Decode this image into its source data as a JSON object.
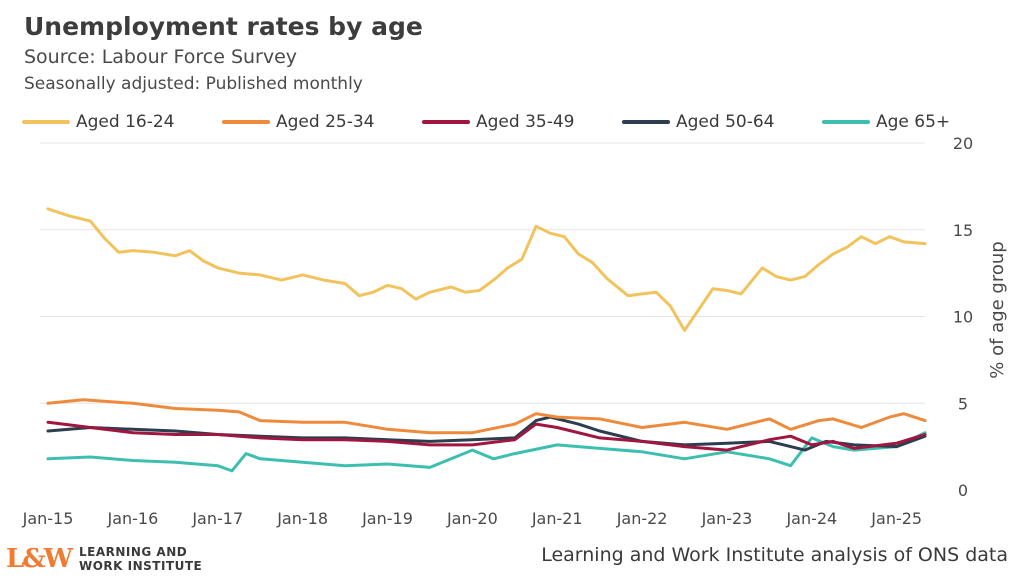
{
  "header": {
    "title": "Unemployment rates by age",
    "subtitle": "Source: Labour Force Survey",
    "subtitle2": "Seasonally adjusted: Published monthly"
  },
  "footer": {
    "brand_mark": "L&W",
    "brand_line1": "LEARNING AND",
    "brand_line2": "WORK INSTITUTE",
    "source": "Learning and Work Institute analysis of ONS data"
  },
  "colors": {
    "aged_16_24": "#f2c35d",
    "aged_25_34": "#ee8a3c",
    "aged_35_49": "#a0163f",
    "aged_50_64": "#2b3d4f",
    "age_65plus": "#3dbfb0",
    "brand": "#f07c34"
  },
  "chart_data": {
    "type": "line",
    "title": "Unemployment rates by age",
    "ylabel": "% of age group",
    "ylim": [
      0,
      20
    ],
    "yticks": [
      0,
      5,
      10,
      15,
      20
    ],
    "grid": true,
    "legend_position": "top",
    "x_tick_labels": [
      "Jan-15",
      "Jan-16",
      "Jan-17",
      "Jan-18",
      "Jan-19",
      "Jan-20",
      "Jan-21",
      "Jan-22",
      "Jan-23",
      "Jan-24",
      "Jan-25"
    ],
    "x_start": "Jan-15",
    "x_end": "May-25",
    "x_frequency": "monthly",
    "series_keyframes_note": "values at listed months; monthly values between",
    "series": [
      {
        "name": "Aged 16-24",
        "color": "#f2c35d",
        "points": [
          [
            "Jan-15",
            16.2
          ],
          [
            "Apr-15",
            15.8
          ],
          [
            "Jul-15",
            15.5
          ],
          [
            "Sep-15",
            14.5
          ],
          [
            "Nov-15",
            13.7
          ],
          [
            "Jan-16",
            13.8
          ],
          [
            "Apr-16",
            13.7
          ],
          [
            "Jul-16",
            13.5
          ],
          [
            "Sep-16",
            13.8
          ],
          [
            "Nov-16",
            13.2
          ],
          [
            "Jan-17",
            12.8
          ],
          [
            "Apr-17",
            12.5
          ],
          [
            "Jul-17",
            12.4
          ],
          [
            "Oct-17",
            12.1
          ],
          [
            "Jan-18",
            12.4
          ],
          [
            "Apr-18",
            12.1
          ],
          [
            "Jul-18",
            11.9
          ],
          [
            "Sep-18",
            11.2
          ],
          [
            "Nov-18",
            11.4
          ],
          [
            "Jan-19",
            11.8
          ],
          [
            "Mar-19",
            11.6
          ],
          [
            "May-19",
            11.0
          ],
          [
            "Jul-19",
            11.4
          ],
          [
            "Oct-19",
            11.7
          ],
          [
            "Dec-19",
            11.4
          ],
          [
            "Feb-20",
            11.5
          ],
          [
            "Apr-20",
            12.1
          ],
          [
            "Jun-20",
            12.8
          ],
          [
            "Aug-20",
            13.3
          ],
          [
            "Oct-20",
            15.2
          ],
          [
            "Dec-20",
            14.8
          ],
          [
            "Feb-21",
            14.6
          ],
          [
            "Apr-21",
            13.6
          ],
          [
            "Jun-21",
            13.1
          ],
          [
            "Aug-21",
            12.2
          ],
          [
            "Nov-21",
            11.2
          ],
          [
            "Jan-22",
            11.3
          ],
          [
            "Mar-22",
            11.4
          ],
          [
            "May-22",
            10.6
          ],
          [
            "Jul-22",
            9.2
          ],
          [
            "Sep-22",
            10.4
          ],
          [
            "Nov-22",
            11.6
          ],
          [
            "Jan-23",
            11.5
          ],
          [
            "Mar-23",
            11.3
          ],
          [
            "Jun-23",
            12.8
          ],
          [
            "Aug-23",
            12.3
          ],
          [
            "Oct-23",
            12.1
          ],
          [
            "Dec-23",
            12.3
          ],
          [
            "Feb-24",
            13.0
          ],
          [
            "Apr-24",
            13.6
          ],
          [
            "Jun-24",
            14.0
          ],
          [
            "Aug-24",
            14.6
          ],
          [
            "Oct-24",
            14.2
          ],
          [
            "Dec-24",
            14.6
          ],
          [
            "Feb-25",
            14.3
          ],
          [
            "May-25",
            14.2
          ]
        ]
      },
      {
        "name": "Aged 25-34",
        "color": "#ee8a3c",
        "points": [
          [
            "Jan-15",
            5.0
          ],
          [
            "Jun-15",
            5.2
          ],
          [
            "Jan-16",
            5.0
          ],
          [
            "Jul-16",
            4.7
          ],
          [
            "Jan-17",
            4.6
          ],
          [
            "Apr-17",
            4.5
          ],
          [
            "Jul-17",
            4.0
          ],
          [
            "Jan-18",
            3.9
          ],
          [
            "Jul-18",
            3.9
          ],
          [
            "Jan-19",
            3.5
          ],
          [
            "Jul-19",
            3.3
          ],
          [
            "Jan-20",
            3.3
          ],
          [
            "Jul-20",
            3.8
          ],
          [
            "Oct-20",
            4.4
          ],
          [
            "Jan-21",
            4.2
          ],
          [
            "Jul-21",
            4.1
          ],
          [
            "Jan-22",
            3.6
          ],
          [
            "Jul-22",
            3.9
          ],
          [
            "Jan-23",
            3.5
          ],
          [
            "Jul-23",
            4.1
          ],
          [
            "Oct-23",
            3.5
          ],
          [
            "Feb-24",
            4.0
          ],
          [
            "Apr-24",
            4.1
          ],
          [
            "Aug-24",
            3.6
          ],
          [
            "Dec-24",
            4.2
          ],
          [
            "Feb-25",
            4.4
          ],
          [
            "May-25",
            4.0
          ]
        ]
      },
      {
        "name": "Aged 35-49",
        "color": "#a0163f",
        "points": [
          [
            "Jan-15",
            3.9
          ],
          [
            "Jul-15",
            3.6
          ],
          [
            "Jan-16",
            3.3
          ],
          [
            "Jul-16",
            3.2
          ],
          [
            "Jan-17",
            3.2
          ],
          [
            "Jul-17",
            3.0
          ],
          [
            "Jan-18",
            2.9
          ],
          [
            "Jul-18",
            2.9
          ],
          [
            "Jan-19",
            2.8
          ],
          [
            "Jul-19",
            2.6
          ],
          [
            "Jan-20",
            2.6
          ],
          [
            "Jul-20",
            2.9
          ],
          [
            "Oct-20",
            3.8
          ],
          [
            "Jan-21",
            3.6
          ],
          [
            "Jul-21",
            3.0
          ],
          [
            "Jan-22",
            2.8
          ],
          [
            "Jul-22",
            2.5
          ],
          [
            "Jan-23",
            2.3
          ],
          [
            "Jul-23",
            2.9
          ],
          [
            "Oct-23",
            3.1
          ],
          [
            "Jan-24",
            2.6
          ],
          [
            "Apr-24",
            2.8
          ],
          [
            "Jul-24",
            2.4
          ],
          [
            "Jan-25",
            2.7
          ],
          [
            "May-25",
            3.2
          ]
        ]
      },
      {
        "name": "Aged 50-64",
        "color": "#2b3d4f",
        "points": [
          [
            "Jan-15",
            3.4
          ],
          [
            "Jul-15",
            3.6
          ],
          [
            "Jan-16",
            3.5
          ],
          [
            "Jul-16",
            3.4
          ],
          [
            "Jan-17",
            3.2
          ],
          [
            "Jul-17",
            3.1
          ],
          [
            "Jan-18",
            3.0
          ],
          [
            "Jul-18",
            3.0
          ],
          [
            "Jan-19",
            2.9
          ],
          [
            "Jul-19",
            2.8
          ],
          [
            "Jan-20",
            2.9
          ],
          [
            "Jul-20",
            3.0
          ],
          [
            "Oct-20",
            4.0
          ],
          [
            "Dec-20",
            4.2
          ],
          [
            "Apr-21",
            3.8
          ],
          [
            "Jul-21",
            3.4
          ],
          [
            "Jan-22",
            2.8
          ],
          [
            "Jul-22",
            2.6
          ],
          [
            "Jan-23",
            2.7
          ],
          [
            "Jul-23",
            2.8
          ],
          [
            "Oct-23",
            2.5
          ],
          [
            "Dec-23",
            2.3
          ],
          [
            "Mar-24",
            2.8
          ],
          [
            "Jul-24",
            2.6
          ],
          [
            "Jan-25",
            2.5
          ],
          [
            "May-25",
            3.1
          ]
        ]
      },
      {
        "name": "Age 65+",
        "color": "#3dbfb0",
        "points": [
          [
            "Jan-15",
            1.8
          ],
          [
            "Jul-15",
            1.9
          ],
          [
            "Jan-16",
            1.7
          ],
          [
            "Jul-16",
            1.6
          ],
          [
            "Jan-17",
            1.4
          ],
          [
            "Mar-17",
            1.1
          ],
          [
            "May-17",
            2.1
          ],
          [
            "Jul-17",
            1.8
          ],
          [
            "Jan-18",
            1.6
          ],
          [
            "Jul-18",
            1.4
          ],
          [
            "Jan-19",
            1.5
          ],
          [
            "Jul-19",
            1.3
          ],
          [
            "Jan-20",
            2.3
          ],
          [
            "Apr-20",
            1.8
          ],
          [
            "Jul-20",
            2.1
          ],
          [
            "Jan-21",
            2.6
          ],
          [
            "Jul-21",
            2.4
          ],
          [
            "Jan-22",
            2.2
          ],
          [
            "Jul-22",
            1.8
          ],
          [
            "Jan-23",
            2.2
          ],
          [
            "Jul-23",
            1.8
          ],
          [
            "Oct-23",
            1.4
          ],
          [
            "Jan-24",
            3.0
          ],
          [
            "Apr-24",
            2.5
          ],
          [
            "Jul-24",
            2.3
          ],
          [
            "Jan-25",
            2.5
          ],
          [
            "May-25",
            3.3
          ]
        ]
      }
    ]
  }
}
